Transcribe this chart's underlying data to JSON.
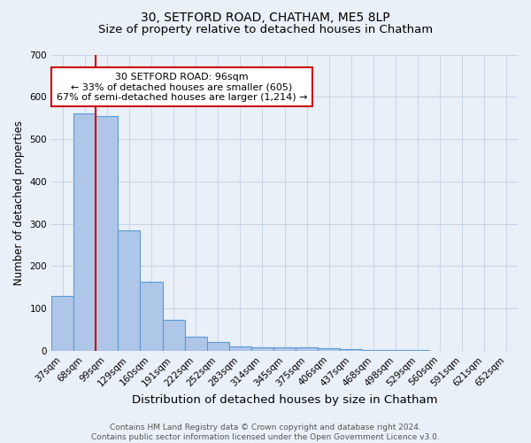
{
  "title": "30, SETFORD ROAD, CHATHAM, ME5 8LP",
  "subtitle": "Size of property relative to detached houses in Chatham",
  "xlabel": "Distribution of detached houses by size in Chatham",
  "ylabel": "Number of detached properties",
  "categories": [
    "37sqm",
    "68sqm",
    "99sqm",
    "129sqm",
    "160sqm",
    "191sqm",
    "222sqm",
    "252sqm",
    "283sqm",
    "314sqm",
    "345sqm",
    "375sqm",
    "406sqm",
    "437sqm",
    "468sqm",
    "498sqm",
    "529sqm",
    "560sqm",
    "591sqm",
    "621sqm",
    "652sqm"
  ],
  "values": [
    130,
    560,
    555,
    285,
    163,
    72,
    33,
    20,
    10,
    9,
    9,
    7,
    5,
    4,
    2,
    1,
    1,
    0,
    0,
    0,
    0
  ],
  "bar_color": "#aec6e8",
  "bar_edge_color": "#5b9bd5",
  "bg_color": "#eaf0f8",
  "grid_color": "#c8d4e4",
  "vline_x_index": 2,
  "vline_color": "#cc0000",
  "annotation_text": "30 SETFORD ROAD: 96sqm\n← 33% of detached houses are smaller (605)\n67% of semi-detached houses are larger (1,214) →",
  "annotation_box_facecolor": "#ffffff",
  "annotation_box_edgecolor": "#cc0000",
  "ylim": [
    0,
    700
  ],
  "yticks": [
    0,
    100,
    200,
    300,
    400,
    500,
    600,
    700
  ],
  "footer": "Contains HM Land Registry data © Crown copyright and database right 2024.\nContains public sector information licensed under the Open Government Licence v3.0.",
  "title_fontsize": 10,
  "subtitle_fontsize": 9.5,
  "xlabel_fontsize": 9.5,
  "ylabel_fontsize": 8.5,
  "tick_fontsize": 7.5,
  "annot_fontsize": 8,
  "footer_fontsize": 6.5
}
